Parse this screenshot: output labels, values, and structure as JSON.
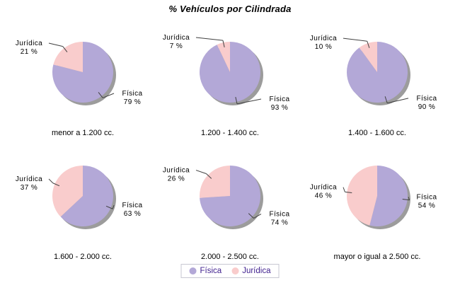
{
  "chart_data": {
    "type": "pie",
    "title": "% Vehículos por Cilindrada",
    "series_names": [
      "Física",
      "Jurídica"
    ],
    "unit_suffix": " %",
    "legend_position": "bottom-center",
    "colors": {
      "fisica": "#B3A8D7",
      "juridica": "#F9CCCC",
      "shadow": "#9C9C9C",
      "leader_line": "#404040",
      "legend_text": "#3F1F8E",
      "legend_border": "#C8C8D2",
      "label_text": "#000000",
      "background": "#FFFFFF"
    },
    "pies": [
      {
        "label": "menor a 1.200 cc.",
        "fisica_pct": 79,
        "juridica_pct": 21
      },
      {
        "label": "1.200 - 1.400 cc.",
        "fisica_pct": 93,
        "juridica_pct": 7
      },
      {
        "label": "1.400 - 1.600 cc.",
        "fisica_pct": 90,
        "juridica_pct": 10
      },
      {
        "label": "1.600 - 2.000 cc.",
        "fisica_pct": 63,
        "juridica_pct": 37
      },
      {
        "label": "2.000 - 2.500 cc.",
        "fisica_pct": 74,
        "juridica_pct": 26
      },
      {
        "label": "mayor o igual a 2.500 cc.",
        "fisica_pct": 54,
        "juridica_pct": 46
      }
    ]
  }
}
